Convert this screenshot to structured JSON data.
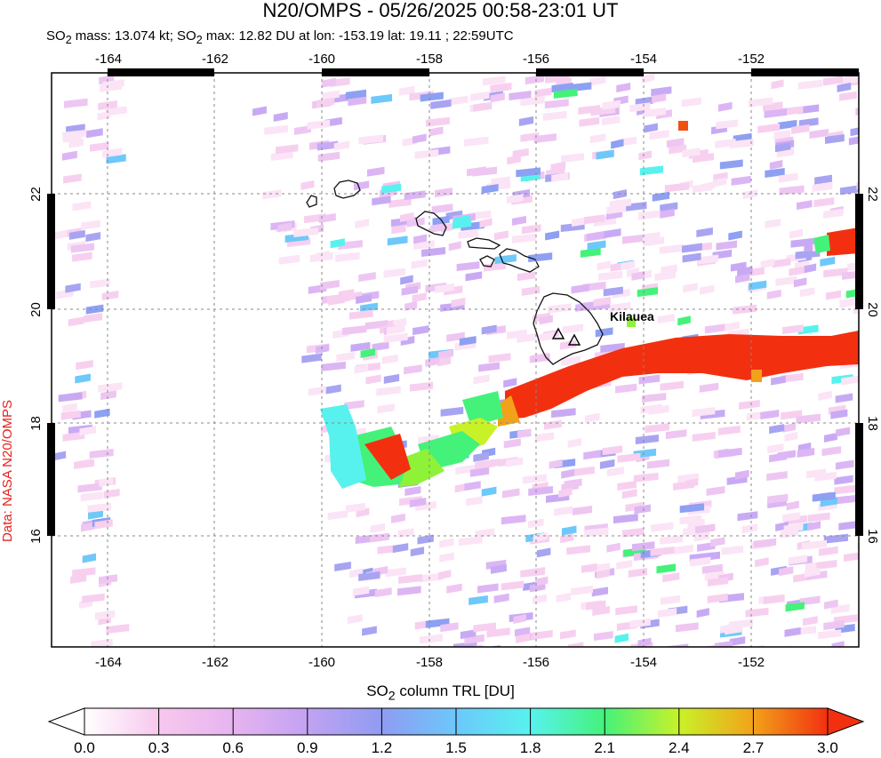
{
  "title": "N20/OMPS - 05/26/2025 00:58-23:01 UT",
  "subtitle": {
    "part1": "SO",
    "sub1": "2",
    "part2": " mass: 13.074 kt; SO",
    "sub2": "2",
    "part3": " max: 12.82 DU at lon: -153.19 lat: 19.11 ; 22:59UTC"
  },
  "credit": "Data: NASA N20/OMPS",
  "volcano_label": "Kilauea",
  "axes": {
    "lon_labels": [
      "-164",
      "-162",
      "-160",
      "-158",
      "-156",
      "-154",
      "-152"
    ],
    "lat_labels": [
      "16",
      "18",
      "20",
      "22"
    ],
    "lon_range": [
      -165,
      -150
    ],
    "lat_range": [
      14,
      24
    ]
  },
  "colorbar": {
    "title_main": "SO",
    "title_sub": "2",
    "title_rest": " column TRL [DU]",
    "labels": [
      "0.0",
      "0.3",
      "0.6",
      "0.9",
      "1.2",
      "1.5",
      "1.8",
      "2.1",
      "2.4",
      "2.7",
      "3.0"
    ],
    "colors": [
      "#ffffff",
      "#f7c8ee",
      "#d2a4f2",
      "#9b9cf0",
      "#6eb8ff",
      "#58f2f0",
      "#44f27c",
      "#8ef238",
      "#f2f220",
      "#f29a18",
      "#f23010"
    ]
  }
}
